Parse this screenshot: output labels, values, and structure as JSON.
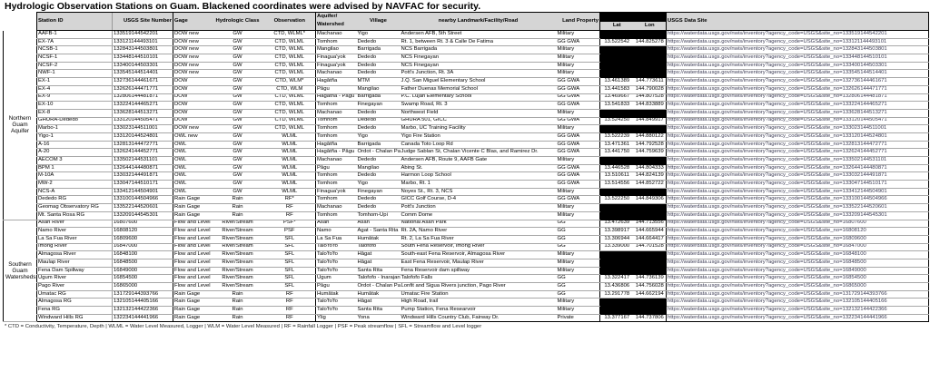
{
  "title": "Hydrologic Observation Stations on Guam. Blackened coordinates were advised by NAVFAC for security.",
  "footnote": "* CTD = Conductivity, Temperature, Depth | WLML = Water Level Measured, Logger | WLM = Water Level Measured | RF = Rainfall Logger | PSF = Peak streamflow | SFL = Streamflow and Level logger",
  "url_base": "https://waterdata.usgs.gov/nwis/inventory?agency_code=USGS&site_no=",
  "colors": {
    "header_bg": "#d5d5d5",
    "redaction": "#000000",
    "grid_line": "#a8a8a8",
    "border": "#000000",
    "url_text": "#3c3c55"
  },
  "columns": {
    "station": "Station ID",
    "site": "USGS Site Number",
    "gage": "Gage",
    "hydro_class": "Hydrologic Class",
    "observation": "Observation",
    "aquifer_line1": "Aquifer/",
    "aquifer_line2": "Watershed",
    "village": "Village",
    "landmark": "nearby Landmark/Facility/Road",
    "land": "Land Property",
    "lat": "Lat",
    "lon": "Lon",
    "data_site": "USGS Data Site"
  },
  "groups": [
    {
      "label": "Northern Guam Aquifer",
      "subgroups": [
        {
          "rows": [
            {
              "station": "AAFB-1",
              "site": "133519144542201",
              "gage": "DOW new",
              "hydro_class": "GW",
              "observation": "CTD, WLML*",
              "watershed": "Machanao",
              "village": "Yigo",
              "landmark": "Andersen AFB, 5th Street",
              "land": "Military",
              "lat": "",
              "lon": "",
              "redacted": true
            },
            {
              "station": "EX-7A",
              "site": "133121144493101",
              "gage": "DOW new",
              "hydro_class": "GW",
              "observation": "CTD, WLML",
              "watershed": "Tomhom",
              "village": "Dededo",
              "landmark": "Rt. 1, between Rt. 3 & Calle De Fatima",
              "land": "GG GWA",
              "lat": "13.522542",
              "lon": "144.825278",
              "redacted": false
            },
            {
              "station": "NCSB-1",
              "site": "132843144503801",
              "gage": "DOW new",
              "hydro_class": "GW",
              "observation": "CTD, WLML",
              "watershed": "Mangilao",
              "village": "Barrigada",
              "landmark": "NCS Barrigada",
              "land": "Military",
              "lat": "",
              "lon": "",
              "redacted": true
            },
            {
              "station": "NCSF-1",
              "site": "133448144510101",
              "gage": "DOW new",
              "hydro_class": "GW",
              "observation": "CTD, WLML",
              "watershed": "Finagua'yok",
              "village": "Dededo",
              "landmark": "NCS Finegayan",
              "land": "Military",
              "lat": "",
              "lon": "",
              "redacted": true
            },
            {
              "station": "NCSF-2",
              "site": "133400144503301",
              "gage": "DOW new",
              "hydro_class": "GW",
              "observation": "CTD, WLML",
              "watershed": "Finagua'yok",
              "village": "Dededo",
              "landmark": "NCS Finegayan",
              "land": "Military",
              "lat": "",
              "lon": "",
              "redacted": true
            },
            {
              "station": "NWF-1",
              "site": "133545144514401",
              "gage": "DOW new",
              "hydro_class": "GW",
              "observation": "CTD, WLML",
              "watershed": "Machanao",
              "village": "Dededo",
              "landmark": "Pott's Junction, Rt. 3A",
              "land": "Military",
              "lat": "",
              "lon": "",
              "redacted": true
            }
          ]
        },
        {
          "rows": [
            {
              "station": "EX-1",
              "site": "132736144461671",
              "gage": "DOW",
              "hydro_class": "GW",
              "observation": "CTD, WLM*",
              "watershed": "Hagåtña",
              "village": "MTM",
              "landmark": "J.Q. San Miguel Elementary School",
              "land": "GG GWA",
              "lat": "13.461389",
              "lon": "144.773611",
              "redacted": false
            },
            {
              "station": "EX-4",
              "site": "132626144471771",
              "gage": "DOW",
              "hydro_class": "GW",
              "observation": "CTD, WLM",
              "watershed": "Pågu",
              "village": "Mangilao",
              "landmark": "Father Duenas Memorial School",
              "land": "GG GWA",
              "lat": "13.441583",
              "lon": "144.790028",
              "redacted": false
            },
            {
              "station": "EX-9",
              "site": "132806144481871",
              "gage": "DOW",
              "hydro_class": "GW",
              "observation": "CTD, WLML",
              "watershed": "Hagåtña - Pågu",
              "village": "Barrigada",
              "landmark": "P.C. Lujan Elementary School",
              "land": "GG GWA",
              "lat": "13.469667",
              "lon": "144.807528",
              "redacted": false
            },
            {
              "station": "EX-10",
              "site": "133224144465271",
              "gage": "DOW",
              "hydro_class": "GW",
              "observation": "CTD, WLML",
              "watershed": "Tomhom",
              "village": "Finegayan",
              "landmark": "Swamp Road, Rt. 3",
              "land": "GG GWA",
              "lat": "13.541833",
              "lon": "144.833889",
              "redacted": false
            },
            {
              "station": "EX-8",
              "site": "133628144513271",
              "gage": "DOW",
              "hydro_class": "GW",
              "observation": "CTD, WLML",
              "watershed": "Machanao",
              "village": "Dededo",
              "landmark": "Northwest Field",
              "land": "Military",
              "lat": "",
              "lon": "",
              "redacted": true
            },
            {
              "station": "GHURA-Dededo",
              "site": "133120144505471",
              "gage": "DOW",
              "hydro_class": "GW",
              "observation": "CTD, WLML",
              "watershed": "Tomhom",
              "village": "Dededo",
              "landmark": "GHURA 501, GICC",
              "land": "GG GWA",
              "lat": "13.524250",
              "lon": "144.849917",
              "redacted": false
            },
            {
              "station": "Marbo-1",
              "site": "133023144511001",
              "gage": "DOW new",
              "hydro_class": "GW",
              "observation": "CTD, WLML",
              "watershed": "Tomhom",
              "village": "Dededo",
              "landmark": "Marbo, UC Training Facility",
              "land": "Military",
              "lat": "",
              "lon": "",
              "redacted": true
            }
          ]
        },
        {
          "rows": [
            {
              "station": "Yigo-1",
              "site": "133120144524801",
              "gage": "OWL new",
              "hydro_class": "GW",
              "observation": "WLML",
              "watershed": "Tomhom",
              "village": "Yigo",
              "landmark": "Yigo Fire Station",
              "land": "GG GWA",
              "lat": "13.522239",
              "lon": "144.880122",
              "redacted": false
            },
            {
              "station": "A-16",
              "site": "132813144472771",
              "gage": "OWL",
              "hydro_class": "GW",
              "observation": "WLML",
              "watershed": "Hagåtña",
              "village": "Barrigada",
              "landmark": "Canada Toto Loop Rd",
              "land": "GG GWA",
              "lat": "13.471361",
              "lon": "144.792528",
              "redacted": false
            },
            {
              "station": "A-20",
              "site": "132624144452771",
              "gage": "OWL",
              "hydro_class": "GW",
              "observation": "WLML",
              "watershed": "Hagåtña - Pågu",
              "village": "Ordot - Chalan Pago",
              "landmark": "Judge Sablan St, Chalan Vicente C Blas, and Ramirez Dr.",
              "land": "GG GWA",
              "lat": "13.441750",
              "lon": "144.759639",
              "redacted": false
            },
            {
              "station": "AECOM 3",
              "site": "133502144531101",
              "gage": "OWL",
              "hydro_class": "GW",
              "observation": "WLML",
              "watershed": "Machanao",
              "village": "Dededo",
              "landmark": "Andersen AFB, Route 9,  AAFB Gate",
              "land": "Military",
              "lat": "",
              "lon": "",
              "redacted": true
            },
            {
              "station": "BPM 1",
              "site": "132644144480871",
              "gage": "OWL",
              "hydro_class": "GW",
              "observation": "WLML",
              "watershed": "Pågu",
              "village": "Mangilao",
              "landmark": "Abing St.",
              "land": "GG GWA",
              "lat": "13.446528",
              "lon": "144.804333",
              "redacted": false
            },
            {
              "station": "M-10A",
              "site": "133032144491871",
              "gage": "OWL",
              "hydro_class": "GW",
              "observation": "WLML",
              "watershed": "Tomhom",
              "village": "Dededo",
              "landmark": "Harmon Loop School",
              "land": "GG GWA",
              "lat": "13.510611",
              "lon": "144.824139",
              "redacted": false
            },
            {
              "station": "MW-2",
              "site": "133047144510171",
              "gage": "OWL",
              "hydro_class": "GW",
              "observation": "WLML",
              "watershed": "Tomhom",
              "village": "Yigo",
              "landmark": "Marbo, Rt. 1",
              "land": "GG GWA",
              "lat": "13.514556",
              "lon": "144.852722",
              "redacted": false
            },
            {
              "station": "NCS-A",
              "site": "133412144504901",
              "gage": "OWL",
              "hydro_class": "GW",
              "observation": "WLML",
              "watershed": "Finagua'yok",
              "village": "Finegayan",
              "landmark": "Noyes St., Rt. 3, NCS",
              "land": "Military",
              "lat": "",
              "lon": "",
              "redacted": true
            }
          ]
        },
        {
          "rows": [
            {
              "station": "Dededo RG",
              "site": "133100144504966",
              "gage": "Rain Gage",
              "hydro_class": "Rain",
              "observation": "RF*",
              "watershed": "Tomhom",
              "village": "Dededo",
              "landmark": "GICC Golf Course, D-4",
              "land": "GG GWA",
              "lat": "13.522250",
              "lon": "144.849306",
              "redacted": false
            },
            {
              "station": "Geomag Observatory RG",
              "site": "133522144520601",
              "gage": "Rain Gage",
              "hydro_class": "Rain",
              "observation": "RF",
              "watershed": "Machanao",
              "village": "Dededo",
              "landmark": "Pott's Junction",
              "land": "Military",
              "lat": "",
              "lon": "",
              "redacted": true
            },
            {
              "station": "Mt. Santa Rosa RG",
              "site": "133209144545301",
              "gage": "Rain Gage",
              "hydro_class": "Rain",
              "observation": "RF",
              "watershed": "Tomhom",
              "village": "Tomhom-Upi",
              "landmark": "Comm Dome",
              "land": "Military",
              "lat": "",
              "lon": "",
              "redacted": true
            }
          ]
        }
      ]
    },
    {
      "label": "Southern Guam Watersheds",
      "subgroups": [
        {
          "rows": [
            {
              "station": "Asan River",
              "site": "16807600",
              "gage": "Flow and Level",
              "hydro_class": "River/Stream",
              "observation": "PSF*",
              "watershed": "Asan",
              "village": "Asan",
              "landmark": "National Asan Park",
              "land": "GG",
              "lat": "13.472639",
              "lon": "144.713556",
              "redacted": false
            },
            {
              "station": "Namo River",
              "site": "16808120",
              "gage": "Flow and Level",
              "hydro_class": "River/Stream",
              "observation": "PSF",
              "watershed": "Namo",
              "village": "Agat - Santa Rita",
              "landmark": "Rt. 2A, Namo River",
              "land": "GG",
              "lat": "13.398917",
              "lon": "144.665944",
              "redacted": false
            },
            {
              "station": "La Sa Fua River",
              "site": "16809600",
              "gage": "Flow and Level",
              "hydro_class": "River/Stream",
              "observation": "SFL",
              "watershed": "La Sa Fua",
              "village": "Humåtak",
              "landmark": "Rt. 2, La Sa Fua River",
              "land": "GG",
              "lat": "13.306944",
              "lon": "144.664417",
              "redacted": false
            },
            {
              "station": "Imong River",
              "site": "16847000",
              "gage": "Flow and Level",
              "hydro_class": "River/Stream",
              "observation": "SFL",
              "watershed": "Talo'fo'fo",
              "village": "Talofofo",
              "landmark": "South Fena Reservoir, Imong River",
              "land": "GG",
              "lat": "13.339000",
              "lon": "144.701528",
              "redacted": false
            },
            {
              "station": "Almagosa River",
              "site": "16848100",
              "gage": "Flow and Level",
              "hydro_class": "River/Stream",
              "observation": "SFL",
              "watershed": "Talo'fo'fo",
              "village": "Hågat",
              "landmark": "South-east Fena Reservoir, Almagosa River",
              "land": "Military",
              "lat": "",
              "lon": "",
              "redacted": true
            },
            {
              "station": "Maulap River",
              "site": "16848500",
              "gage": "Flow and Level",
              "hydro_class": "River/Stream",
              "observation": "SFL",
              "watershed": "Talo'fo'fo",
              "village": "Hågat",
              "landmark": "East Fena Reservoir, Maulap River",
              "land": "Military",
              "lat": "",
              "lon": "",
              "redacted": true
            },
            {
              "station": "Fena Dam Spillway",
              "site": "16849000",
              "gage": "Flow and Level",
              "hydro_class": "River/Stream",
              "observation": "SFL",
              "watershed": "Talo'fo'fo",
              "village": "Santa Rita",
              "landmark": "Fena Reservoir dam spillway",
              "land": "Military",
              "lat": "",
              "lon": "",
              "redacted": true
            },
            {
              "station": "Ugum River",
              "site": "16854500",
              "gage": "Flow and Level",
              "hydro_class": "River/Stream",
              "observation": "SFL",
              "watershed": "Ugum",
              "village": "Talofofo - Inarajan",
              "landmark": "Talofofo Falls",
              "land": "GG",
              "lat": "13.322417",
              "lon": "144.736139",
              "redacted": false
            },
            {
              "station": "Pago River",
              "site": "16865000",
              "gage": "Flow and Level",
              "hydro_class": "River/Stream",
              "observation": "SFL",
              "watershed": "Pågu",
              "village": "Ordot - Chalan Pago",
              "landmark": "Lonfit and Sigua Rivers junction, Pago River",
              "land": "GG",
              "lat": "13.436806",
              "lon": "144.756028",
              "redacted": false
            }
          ]
        },
        {
          "rows": [
            {
              "station": "Umatac RG",
              "site": "131729144393766",
              "gage": "Rain Gage",
              "hydro_class": "Rain",
              "observation": "RF",
              "watershed": "Humåtak",
              "village": "Humåtak",
              "landmark": "Umatac Fire Station",
              "land": "GG",
              "lat": "13.291778",
              "lon": "144.662194",
              "redacted": false
            },
            {
              "station": "Almagosa RG",
              "site": "132105144405166",
              "gage": "Rain Gage",
              "hydro_class": "Rain",
              "observation": "RF",
              "watershed": "Talo'fo'fo",
              "village": "Hågat",
              "landmark": "High Road, trail",
              "land": "Military",
              "lat": "",
              "lon": "",
              "redacted": true
            },
            {
              "station": "Fena RG",
              "site": "132132144422366",
              "gage": "Rain Gage",
              "hydro_class": "Rain",
              "observation": "RF",
              "watershed": "Talo'fo'fo",
              "village": "Santa Rita",
              "landmark": "Pump Station, Fena Researvoir",
              "land": "Military",
              "lat": "",
              "lon": "",
              "redacted": true
            },
            {
              "station": "Windward Hills RG",
              "site": "132234144441966",
              "gage": "Rain Gage",
              "hydro_class": "Rain",
              "observation": "RF",
              "watershed": "Ylig",
              "village": "Yona",
              "landmark": "Windward Hills Country Club, Fairway Dr.",
              "land": "Private",
              "lat": "13.377167",
              "lon": "144.737806",
              "redacted": false
            }
          ]
        }
      ]
    }
  ]
}
